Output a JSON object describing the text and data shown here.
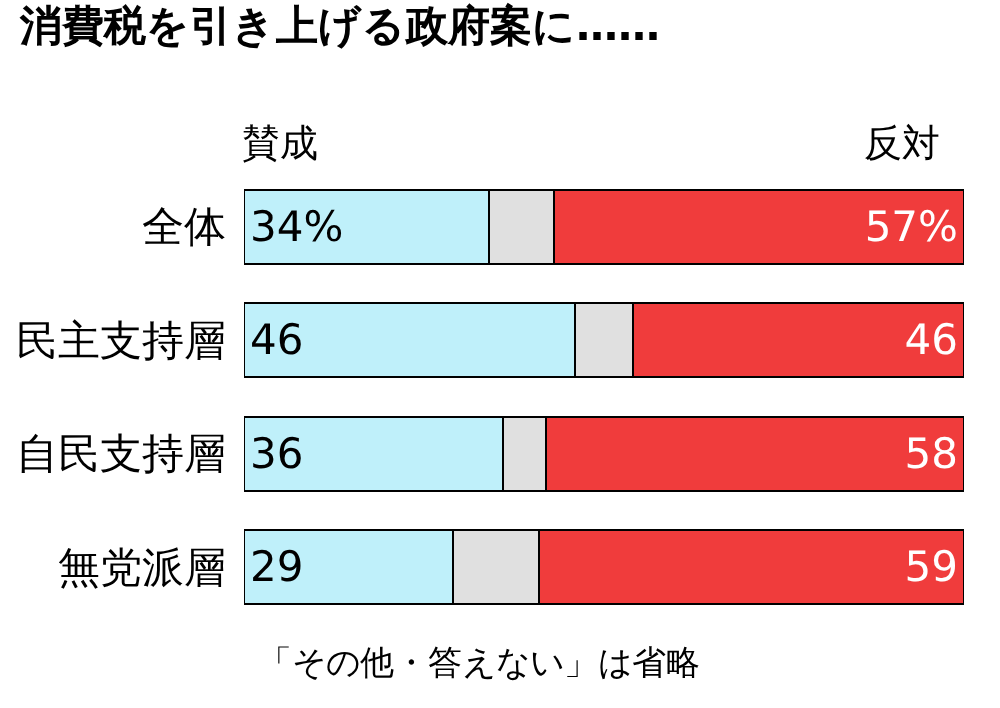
{
  "chart_data": {
    "type": "bar",
    "orientation": "horizontal",
    "stacked": true,
    "title": "消費税を引き上げる政府案に……",
    "categories": [
      "全体",
      "民主支持層",
      "自民支持層",
      "無党派層"
    ],
    "series": [
      {
        "name": "賛成",
        "color": "#bff0fa",
        "values": [
          34,
          46,
          36,
          29
        ],
        "value_labels": [
          "34%",
          "46",
          "36",
          "29"
        ]
      },
      {
        "color": "#e0e0e0",
        "values": [
          9,
          8,
          6,
          12
        ]
      },
      {
        "name": "反対",
        "color": "#f03c3c",
        "values": [
          57,
          46,
          58,
          59
        ],
        "value_labels": [
          "57%",
          "46",
          "58",
          "59"
        ]
      }
    ],
    "annotations": [
      "「その他・答えない」は省略"
    ],
    "legend": false,
    "tick_labels": "y"
  }
}
